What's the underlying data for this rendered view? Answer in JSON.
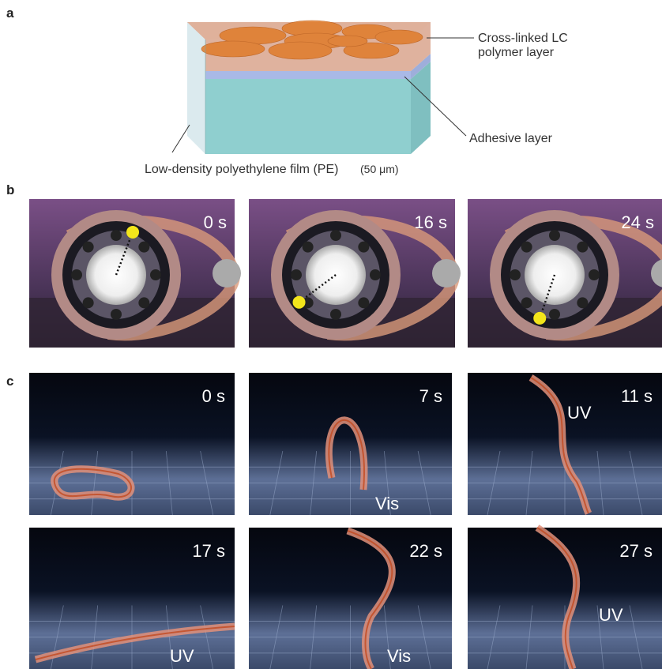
{
  "panel_a": {
    "label": "a",
    "lc_layer_lines": [
      "Cross-linked LC",
      "polymer layer"
    ],
    "adhesive": "Adhesive layer",
    "film": "Low-density polyethylene film (PE)",
    "thickness": "(50 μm)"
  },
  "panel_b": {
    "label": "b",
    "frames": [
      "0 s",
      "16 s",
      "24 s"
    ]
  },
  "panel_c": {
    "label": "c",
    "frames": [
      {
        "time": "0 s"
      },
      {
        "time": "7 s",
        "light": "Vis"
      },
      {
        "time": "11 s",
        "light": "UV"
      },
      {
        "time": "17 s",
        "light": "UV"
      },
      {
        "time": "22 s",
        "light": "Vis"
      },
      {
        "time": "27 s",
        "light": "UV"
      }
    ]
  }
}
